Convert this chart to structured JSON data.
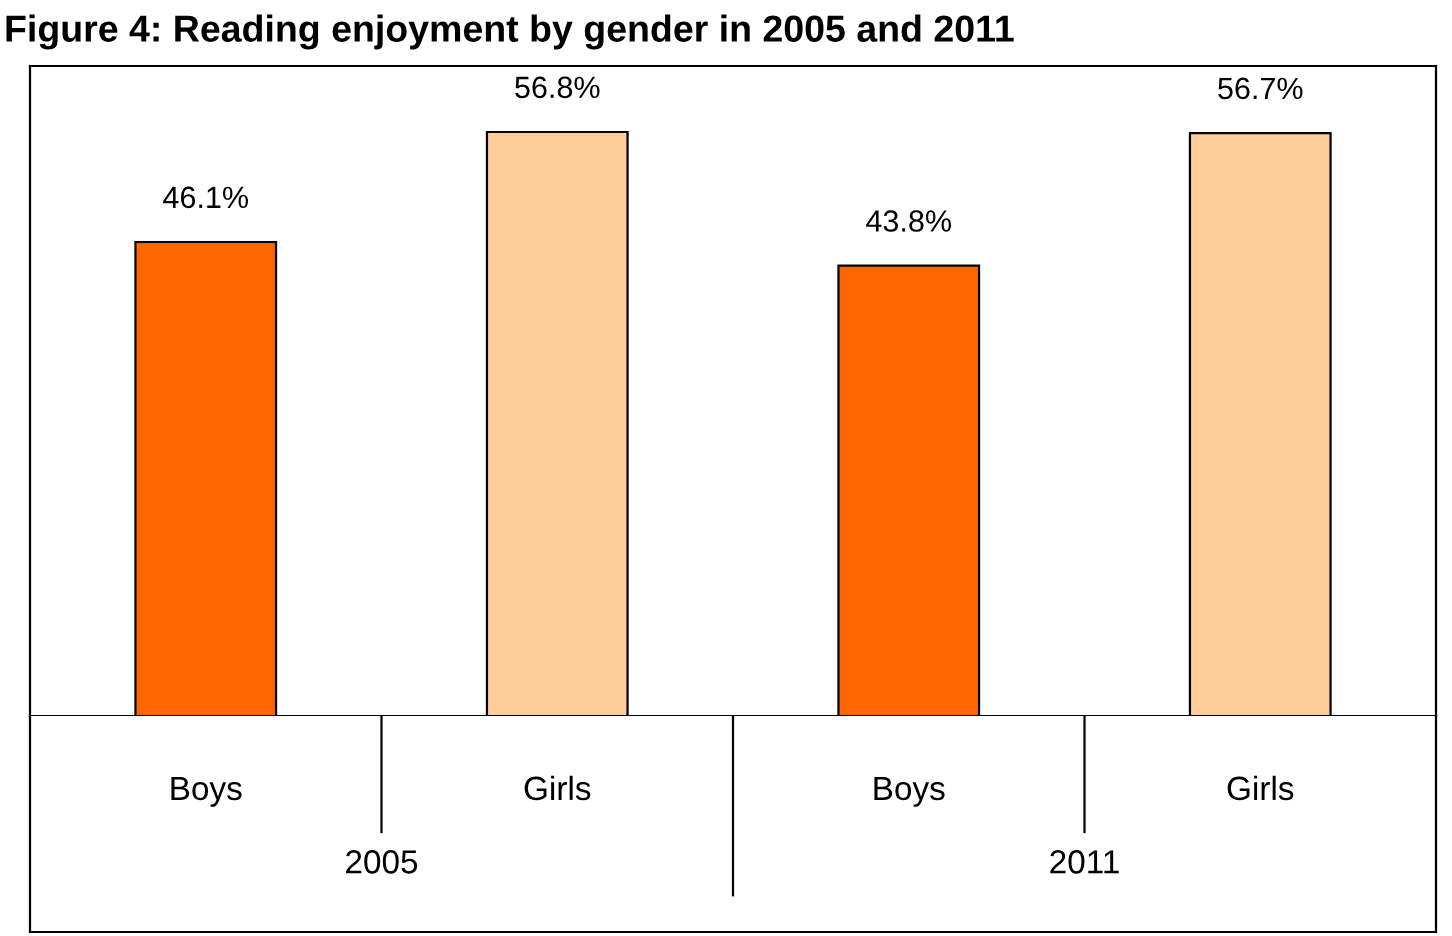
{
  "chart_data": {
    "type": "bar",
    "title": "Figure 4: Reading enjoyment by gender in 2005 and 2011",
    "categories": [
      "Boys",
      "Girls",
      "Boys",
      "Girls"
    ],
    "values": [
      46.1,
      56.8,
      43.8,
      56.7
    ],
    "colors": [
      "#ff6600",
      "#ffcc99",
      "#ff6600",
      "#ffcc99"
    ],
    "value_labels": [
      "46.1%",
      "56.8%",
      "43.8%",
      "56.7%"
    ],
    "annotations": [
      "2005",
      "2011"
    ]
  }
}
